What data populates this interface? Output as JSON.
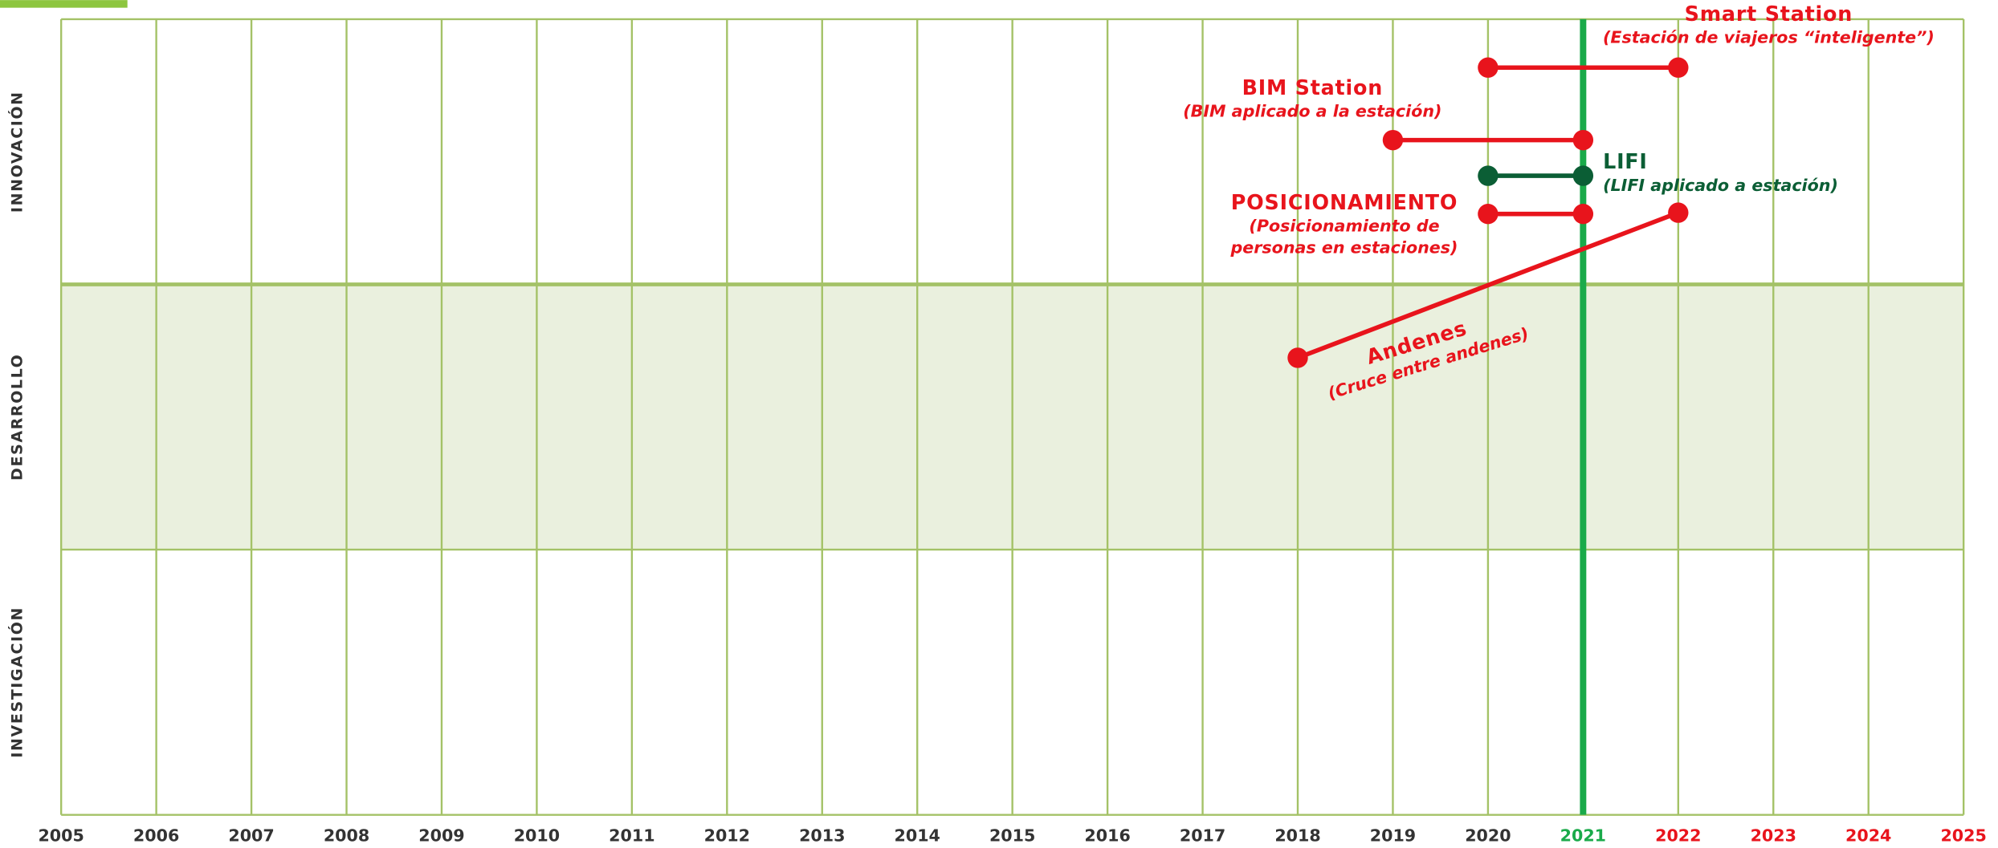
{
  "chart_data": {
    "type": "timeline",
    "rows": [
      "INNOVACIÓN",
      "DESARROLLO",
      "INVESTIGACIÓN"
    ],
    "xlim": [
      2005,
      2025
    ],
    "xticks": [
      2005,
      2006,
      2007,
      2008,
      2009,
      2010,
      2011,
      2012,
      2013,
      2014,
      2015,
      2016,
      2017,
      2018,
      2019,
      2020,
      2021,
      2022,
      2023,
      2024,
      2025
    ],
    "current_year": 2021,
    "items": [
      {
        "name": "Smart Station",
        "subtitle": [
          "(Estación de viajeros “inteligente”)"
        ],
        "x": [
          2020,
          2022
        ],
        "color": "#e8141c"
      },
      {
        "name": "BIM Station",
        "subtitle": [
          "(BIM aplicado a la estación)"
        ],
        "x": [
          2019,
          2021
        ],
        "color": "#e8141c"
      },
      {
        "name": "LIFI",
        "subtitle": [
          "(LIFI aplicado a estación)"
        ],
        "x": [
          2020,
          2021
        ],
        "color": "#0b5e35"
      },
      {
        "name": "POSICIONAMIENTO",
        "subtitle": [
          "(Posicionamiento de",
          "personas en estaciones)"
        ],
        "x": [
          2020,
          2021
        ],
        "color": "#e8141c"
      },
      {
        "name": "Andenes",
        "subtitle": [
          "(Cruce entre andenes)"
        ],
        "x": [
          2018,
          2022
        ],
        "color": "#e8141c"
      }
    ]
  }
}
